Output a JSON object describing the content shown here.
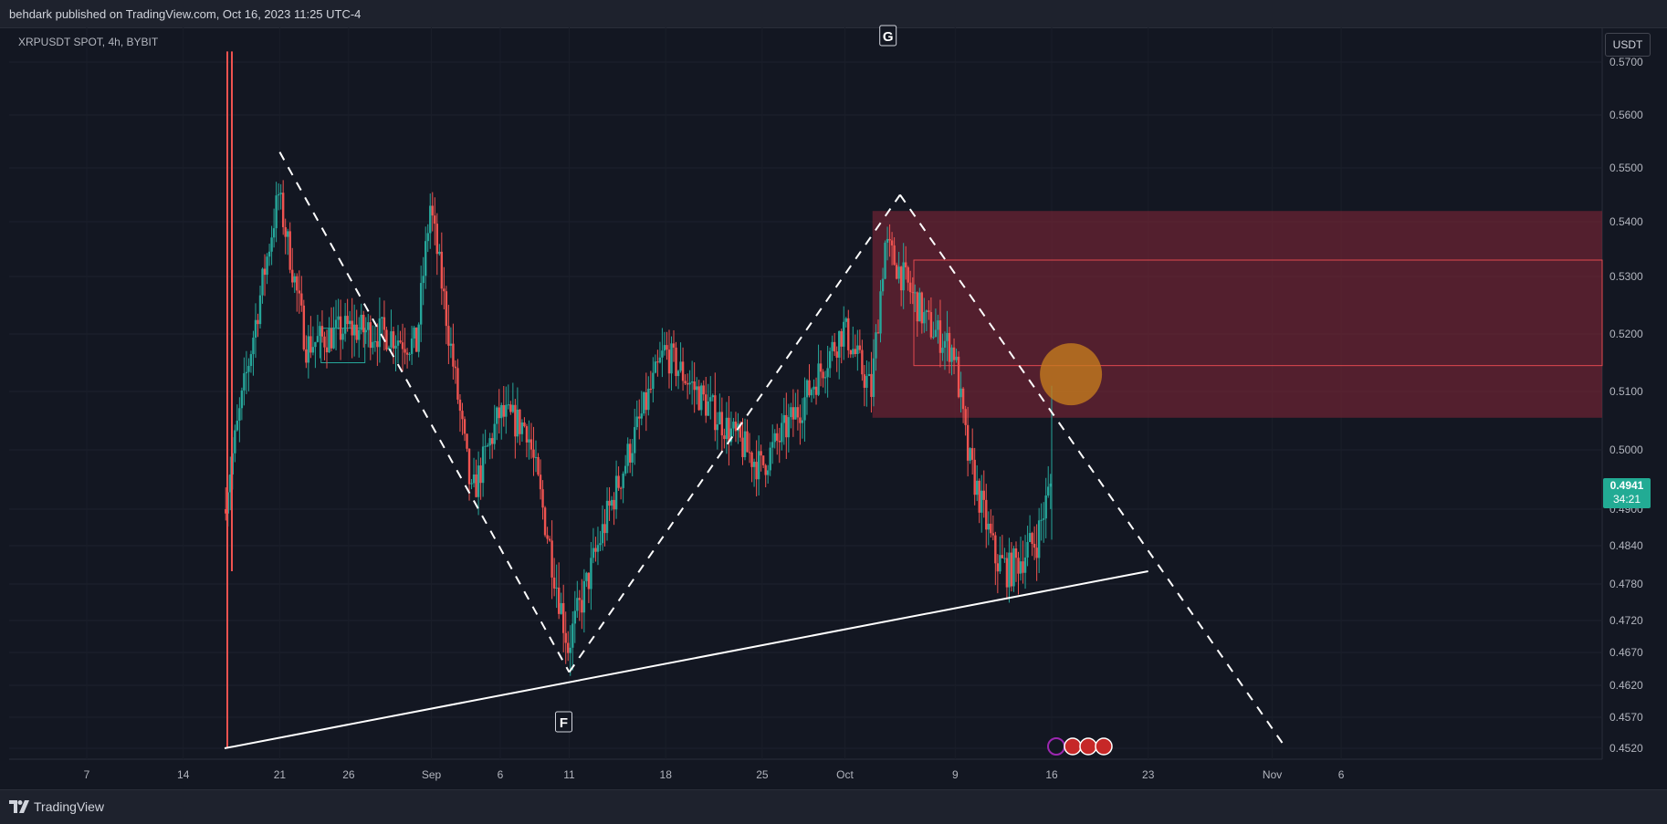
{
  "header": {
    "published": "behdark published on TradingView.com, Oct 16, 2023 11:25 UTC-4"
  },
  "footer": {
    "brand": "TradingView",
    "logo_icon": "tradingview-logo-icon"
  },
  "chart_data": {
    "type": "candlestick",
    "title": "XRPUSDT SPOT, 4h, BYBIT",
    "currency": "USDT",
    "current_price": "0.4941",
    "countdown": "34:21",
    "y_tick_labels": [
      "0.5700",
      "0.5600",
      "0.5500",
      "0.5400",
      "0.5300",
      "0.5200",
      "0.5100",
      "0.5000",
      "0.4900",
      "0.4840",
      "0.4780",
      "0.4720",
      "0.4670",
      "0.4620",
      "0.4570",
      "0.4520"
    ],
    "x_tick_labels": [
      "7",
      "14",
      "21",
      "26",
      "Sep",
      "6",
      "11",
      "18",
      "25",
      "Oct",
      "9",
      "16",
      "23",
      "Nov",
      "6"
    ],
    "point_labels": [
      "G",
      "F"
    ],
    "colors": {
      "up": "#26a69a",
      "down": "#ef5350",
      "zone": "#7a2535",
      "marker": "#c77d1d",
      "price_tag": "#22ab94"
    },
    "annotations": [
      {
        "type": "supply-zone",
        "price_range": [
          0.5055,
          0.542
        ]
      },
      {
        "type": "inner-box",
        "price_range": [
          0.5145,
          0.533
        ]
      },
      {
        "type": "dashed-trend",
        "from": [
          "Aug 21",
          "0.5530"
        ],
        "to": [
          "Sep 11",
          "0.4640"
        ]
      },
      {
        "type": "dashed-trend",
        "from": [
          "Sep 11",
          "0.4640"
        ],
        "to": [
          "Oct 5",
          "0.5450"
        ]
      },
      {
        "type": "dashed-trend",
        "from": [
          "Oct 5",
          "0.5450"
        ],
        "to": [
          "Nov 2",
          "0.4520"
        ]
      },
      {
        "type": "solid-trend",
        "from": [
          "Aug 17",
          "0.4520"
        ],
        "to": [
          "Oct 23",
          "0.4800"
        ]
      },
      {
        "type": "marker-circle",
        "at": [
          "Oct 17",
          "0.5130"
        ]
      }
    ],
    "series": {
      "start_label": "Aug 17",
      "key_points": [
        {
          "label": "Aug 17",
          "price": 0.49
        },
        {
          "label": "Aug 21",
          "price": 0.545
        },
        {
          "label": "Aug 23",
          "price": 0.518
        },
        {
          "label": "Aug 26",
          "price": 0.521
        },
        {
          "label": "Aug 29",
          "price": 0.52
        },
        {
          "label": "Aug 31",
          "price": 0.518
        },
        {
          "label": "Sep 1",
          "price": 0.543
        },
        {
          "label": "Sep 4",
          "price": 0.492
        },
        {
          "label": "Sep 6",
          "price": 0.506
        },
        {
          "label": "Sep 8",
          "price": 0.504
        },
        {
          "label": "Sep 11",
          "price": 0.468
        },
        {
          "label": "Sep 14",
          "price": 0.49
        },
        {
          "label": "Sep 18",
          "price": 0.517
        },
        {
          "label": "Sep 21",
          "price": 0.508
        },
        {
          "label": "Sep 25",
          "price": 0.497
        },
        {
          "label": "Sep 28",
          "price": 0.508
        },
        {
          "label": "Oct 1",
          "price": 0.521
        },
        {
          "label": "Oct 3",
          "price": 0.51
        },
        {
          "label": "Oct 4",
          "price": 0.536
        },
        {
          "label": "Oct 7",
          "price": 0.522
        },
        {
          "label": "Oct 9",
          "price": 0.517
        },
        {
          "label": "Oct 10",
          "price": 0.499
        },
        {
          "label": "Oct 12",
          "price": 0.482
        },
        {
          "label": "Oct 13",
          "price": 0.48
        },
        {
          "label": "Oct 15",
          "price": 0.485
        },
        {
          "label": "Oct 16",
          "price": 0.4941
        }
      ]
    }
  }
}
